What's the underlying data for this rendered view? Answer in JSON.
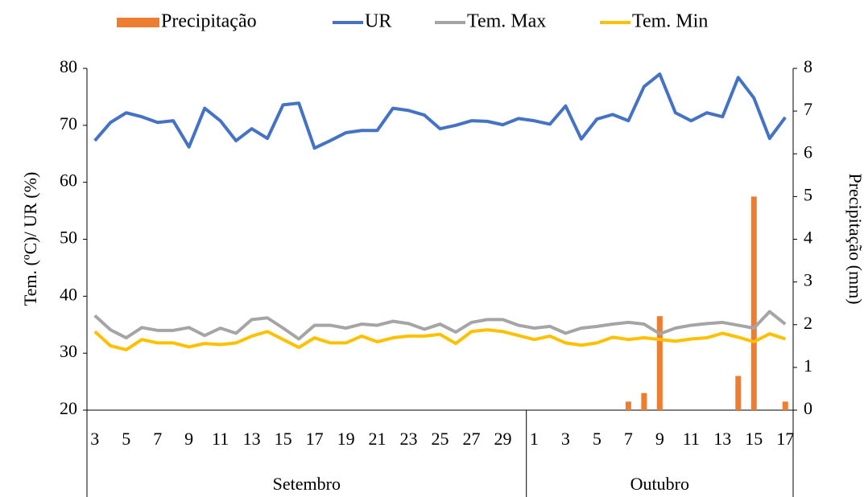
{
  "chart_data": {
    "type": "bar-line",
    "y_label": "Tem. (ºC)/ UR (%)",
    "y2_label": "Precipitação (mm)",
    "groups": [
      {
        "name": "Setembro",
        "categories": [
          "3",
          null,
          "5",
          null,
          "7",
          null,
          "9",
          null,
          "11",
          null,
          "13",
          null,
          "15",
          null,
          "17",
          null,
          "19",
          null,
          "21",
          null,
          "23",
          null,
          "25",
          null,
          "27",
          null,
          "29",
          null
        ]
      },
      {
        "name": "Outubro",
        "categories": [
          "1",
          null,
          "3",
          null,
          "5",
          null,
          "7",
          null,
          "9",
          null,
          "11",
          null,
          "13",
          null,
          "15",
          null,
          "17"
        ]
      }
    ],
    "ylim": [
      20,
      80
    ],
    "yticks": [
      20,
      30,
      40,
      50,
      60,
      70,
      80
    ],
    "y2lim": [
      0,
      8
    ],
    "y2ticks": [
      0,
      1,
      2,
      3,
      4,
      5,
      6,
      7,
      8
    ],
    "series": [
      {
        "name": "Precipitação",
        "kind": "bar",
        "axis": "y2",
        "color": "#ED7D31",
        "values": [
          0,
          0,
          0,
          0,
          0,
          0,
          0,
          0,
          0,
          0,
          0,
          0,
          0,
          0,
          0,
          0,
          0,
          0,
          0,
          0,
          0,
          0,
          0,
          0,
          0,
          0,
          0,
          0,
          0,
          0,
          0,
          0,
          0,
          0,
          0.2,
          0.4,
          2.2,
          0,
          0,
          0,
          0,
          0.8,
          5.0,
          0,
          0.2
        ]
      },
      {
        "name": "UR",
        "kind": "line",
        "color": "#4472C4",
        "values": [
          67.3,
          70.5,
          72.2,
          71.5,
          70.5,
          70.8,
          66.2,
          73,
          70.8,
          67.3,
          69.4,
          67.7,
          73.6,
          73.9,
          66,
          67.3,
          68.7,
          69.1,
          69.1,
          73,
          72.6,
          71.8,
          69.4,
          70,
          70.8,
          70.7,
          70.1,
          71.2,
          70.8,
          70.2,
          73.4,
          67.6,
          71.1,
          71.9,
          70.8,
          76.8,
          79,
          72.2,
          70.8,
          72.2,
          71.5,
          78.4,
          74.8,
          67.7,
          71.4
        ]
      },
      {
        "name": "Tem. Max",
        "kind": "line",
        "color": "#A5A5A5",
        "values": [
          36.6,
          34.1,
          32.7,
          34.5,
          34,
          34,
          34.5,
          33.1,
          34.4,
          33.5,
          35.9,
          36.2,
          34.4,
          32.5,
          34.9,
          34.9,
          34.4,
          35.1,
          34.9,
          35.6,
          35.2,
          34.2,
          35.1,
          33.7,
          35.4,
          35.9,
          35.9,
          34.9,
          34.4,
          34.7,
          33.5,
          34.4,
          34.7,
          35.1,
          35.4,
          35.1,
          33.4,
          34.4,
          34.9,
          35.2,
          35.4,
          34.9,
          34.4,
          37.3,
          35.1
        ]
      },
      {
        "name": "Tem. Min",
        "kind": "line",
        "color": "#FFC000",
        "values": [
          33.8,
          31.3,
          30.6,
          32.4,
          31.8,
          31.8,
          31.1,
          31.7,
          31.5,
          31.8,
          33,
          33.8,
          32.4,
          31,
          32.7,
          31.8,
          31.8,
          33,
          32,
          32.7,
          33,
          33,
          33.3,
          31.7,
          33.8,
          34.1,
          33.8,
          33.1,
          32.4,
          33,
          31.8,
          31.4,
          31.8,
          32.8,
          32.4,
          32.7,
          32.4,
          32.1,
          32.5,
          32.7,
          33.5,
          32.8,
          32,
          33.4,
          32.5
        ]
      }
    ]
  }
}
